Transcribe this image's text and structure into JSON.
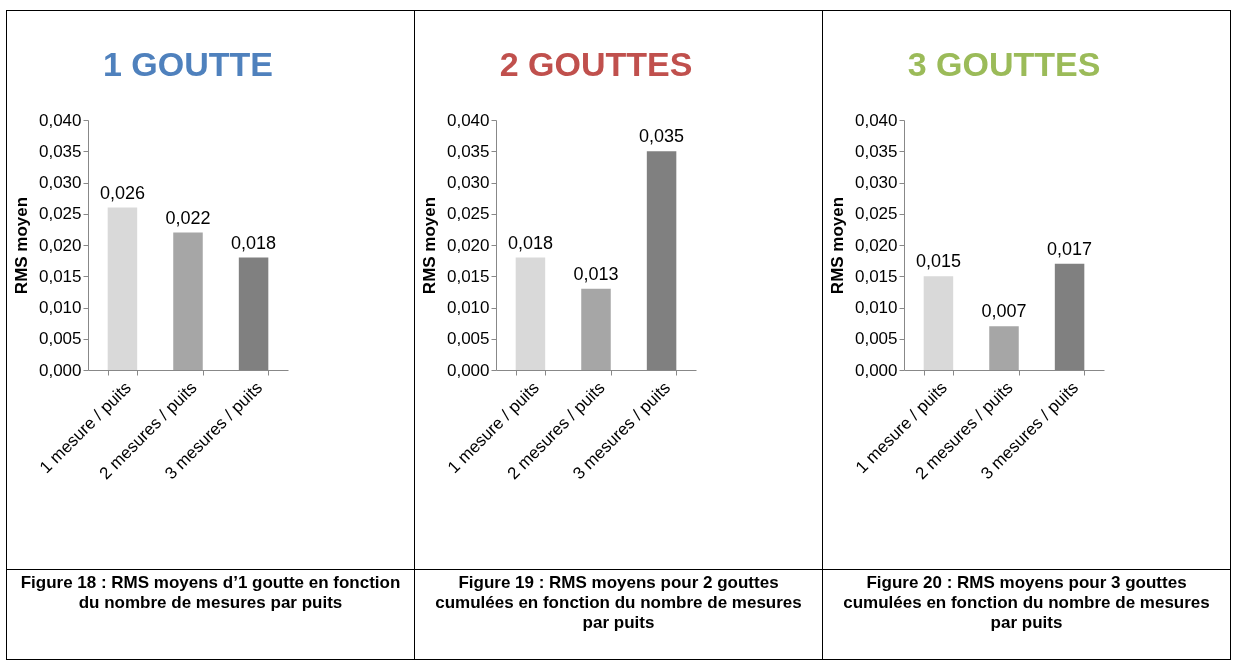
{
  "chart_data": [
    {
      "type": "bar",
      "title": "1 GOUTTE",
      "ylabel": "RMS moyen",
      "categories": [
        "1 mesure / puits",
        "2 mesures / puits",
        "3 mesures / puits"
      ],
      "values": [
        0.026,
        0.022,
        0.018
      ],
      "value_labels": [
        "0,026",
        "0,022",
        "0,018"
      ],
      "colors": [
        "#d9d9d9",
        "#a6a6a6",
        "#808080"
      ],
      "ylim": [
        0,
        0.04
      ],
      "yticks": [
        {
          "value": 0,
          "label": "0,000"
        },
        {
          "value": 0.005,
          "label": "0,005"
        },
        {
          "value": 0.01,
          "label": "0,010"
        },
        {
          "value": 0.015,
          "label": "0,015"
        },
        {
          "value": 0.02,
          "label": "0,020"
        },
        {
          "value": 0.025,
          "label": "0,025"
        },
        {
          "value": 0.03,
          "label": "0,030"
        },
        {
          "value": 0.035,
          "label": "0,035"
        },
        {
          "value": 0.04,
          "label": "0,040"
        }
      ],
      "annotations": [
        "Figure 18 : RMS moyens d’1 goutte en fonction du nombre de mesures par puits"
      ]
    },
    {
      "type": "bar",
      "title": "2 GOUTTES",
      "ylabel": "RMS moyen",
      "categories": [
        "1 mesure / puits",
        "2 mesures / puits",
        "3 mesures / puits"
      ],
      "values": [
        0.018,
        0.013,
        0.035
      ],
      "value_labels": [
        "0,018",
        "0,013",
        "0,035"
      ],
      "colors": [
        "#d9d9d9",
        "#a6a6a6",
        "#808080"
      ],
      "ylim": [
        0,
        0.04
      ],
      "yticks": [
        {
          "value": 0,
          "label": "0,000"
        },
        {
          "value": 0.005,
          "label": "0,005"
        },
        {
          "value": 0.01,
          "label": "0,010"
        },
        {
          "value": 0.015,
          "label": "0,015"
        },
        {
          "value": 0.02,
          "label": "0,020"
        },
        {
          "value": 0.025,
          "label": "0,025"
        },
        {
          "value": 0.03,
          "label": "0,030"
        },
        {
          "value": 0.035,
          "label": "0,035"
        },
        {
          "value": 0.04,
          "label": "0,040"
        }
      ],
      "annotations": [
        "Figure 19 : RMS moyens pour 2 gouttes cumulées en fonction du nombre de mesures par puits"
      ]
    },
    {
      "type": "bar",
      "title": "3 GOUTTES",
      "ylabel": "RMS moyen",
      "categories": [
        "1 mesure / puits",
        "2 mesures / puits",
        "3 mesures / puits"
      ],
      "values": [
        0.015,
        0.007,
        0.017
      ],
      "value_labels": [
        "0,015",
        "0,007",
        "0,017"
      ],
      "colors": [
        "#d9d9d9",
        "#a6a6a6",
        "#808080"
      ],
      "ylim": [
        0,
        0.04
      ],
      "yticks": [
        {
          "value": 0,
          "label": "0,000"
        },
        {
          "value": 0.005,
          "label": "0,005"
        },
        {
          "value": 0.01,
          "label": "0,010"
        },
        {
          "value": 0.015,
          "label": "0,015"
        },
        {
          "value": 0.02,
          "label": "0,020"
        },
        {
          "value": 0.025,
          "label": "0,025"
        },
        {
          "value": 0.03,
          "label": "0,030"
        },
        {
          "value": 0.035,
          "label": "0,035"
        },
        {
          "value": 0.04,
          "label": "0,040"
        }
      ],
      "annotations": [
        "Figure 20 : RMS moyens pour 3 gouttes cumulées en fonction du nombre de mesures par puits"
      ]
    }
  ]
}
